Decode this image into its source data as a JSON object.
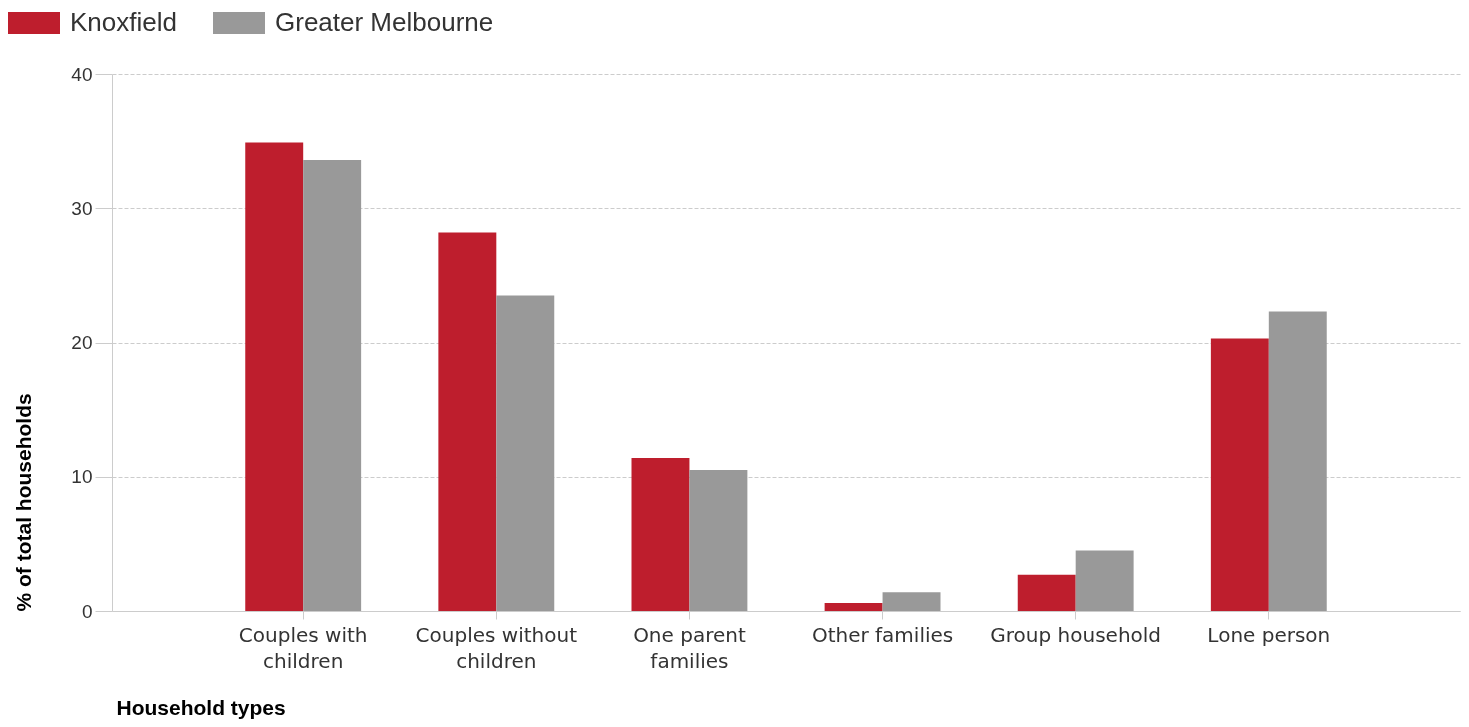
{
  "chart_data": {
    "type": "bar",
    "xlabel": "Household types",
    "ylabel": "% of total households",
    "categories": [
      "Couples with children",
      "Couples without children",
      "One parent families",
      "Other families",
      "Group household",
      "Lone person"
    ],
    "series": [
      {
        "name": "Knoxfield",
        "color": "#be1e2d",
        "values": [
          34.9,
          28.2,
          11.4,
          0.6,
          2.7,
          20.3
        ]
      },
      {
        "name": "Greater Melbourne",
        "color": "#999999",
        "values": [
          33.6,
          23.5,
          10.5,
          1.4,
          4.5,
          22.3
        ]
      }
    ],
    "ylim": [
      0,
      40
    ],
    "yticks": [
      0,
      10,
      20,
      30,
      40
    ],
    "grid": "y",
    "legend": "top left"
  }
}
